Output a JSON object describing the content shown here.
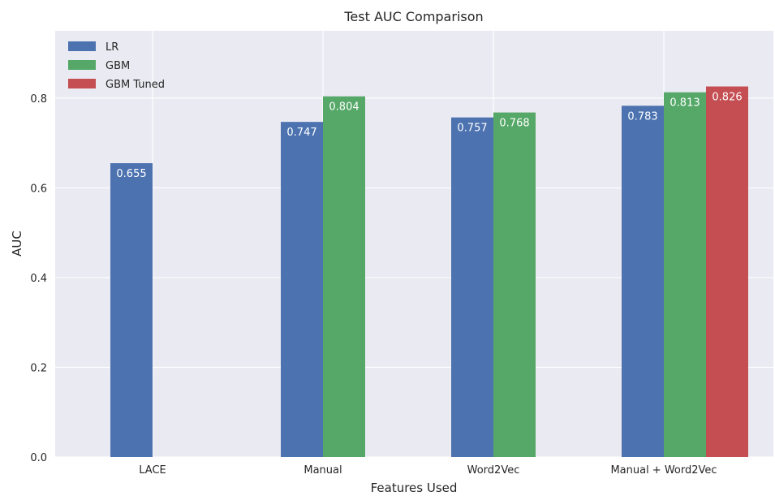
{
  "chart_data": {
    "type": "bar",
    "title": "Test AUC Comparison",
    "xlabel": "Features Used",
    "ylabel": "AUC",
    "ylim": [
      0,
      0.95
    ],
    "yticks": [
      "0.0",
      "0.2",
      "0.4",
      "0.6",
      "0.8"
    ],
    "categories": [
      "LACE",
      "Manual",
      "Word2Vec",
      "Manual + Word2Vec"
    ],
    "series": [
      {
        "name": "LR",
        "color": "#4c72b0",
        "values": [
          0.655,
          0.747,
          0.757,
          0.783
        ],
        "labels": [
          "0.655",
          "0.747",
          "0.757",
          "0.783"
        ]
      },
      {
        "name": "GBM",
        "color": "#55a868",
        "values": [
          null,
          0.804,
          0.768,
          0.813
        ],
        "labels": [
          "",
          "0.804",
          "0.768",
          "0.813"
        ]
      },
      {
        "name": "GBM Tuned",
        "color": "#c44e52",
        "values": [
          null,
          null,
          null,
          0.826
        ],
        "labels": [
          "",
          "",
          "",
          "0.826"
        ]
      }
    ],
    "grid": true,
    "legend": "top-left",
    "background": "#eaeaf2"
  }
}
